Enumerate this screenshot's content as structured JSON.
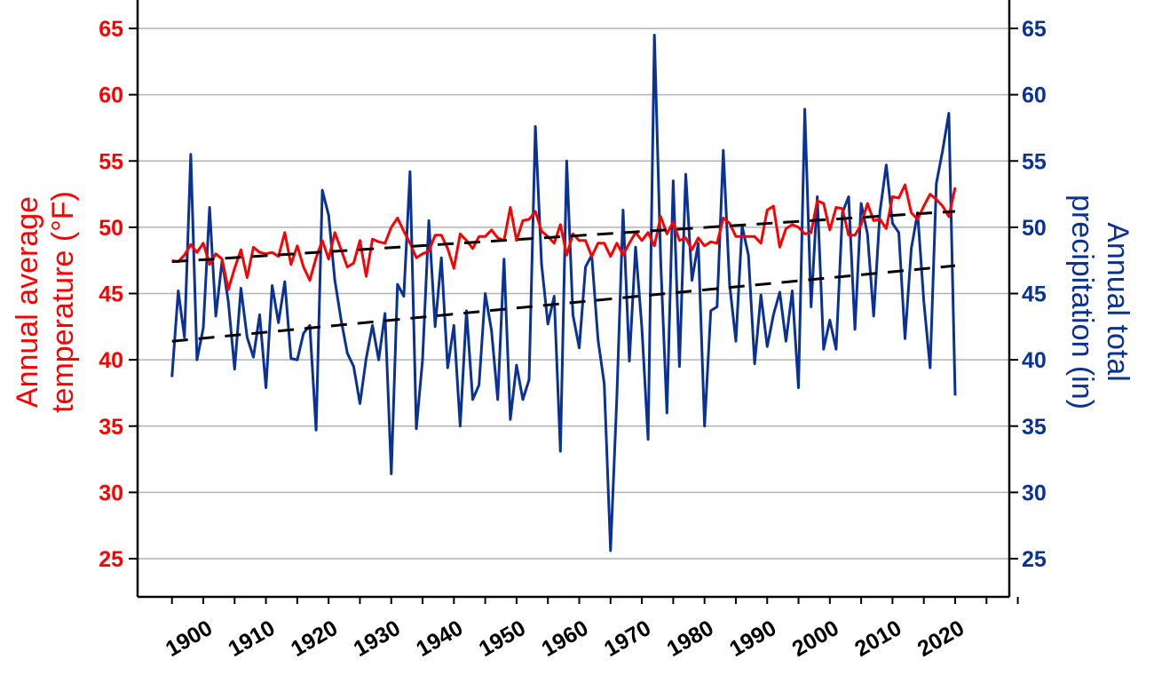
{
  "chart_data": {
    "type": "line",
    "x_start": 1895,
    "x_end": 2020,
    "xlim": [
      1892,
      2031
    ],
    "ylim": [
      22,
      67
    ],
    "y_ticks": [
      25,
      30,
      35,
      40,
      45,
      50,
      55,
      60,
      65
    ],
    "x_ticks": [
      1900,
      1910,
      1920,
      1930,
      1940,
      1950,
      1960,
      1970,
      1980,
      1990,
      2000,
      2010,
      2020
    ],
    "ylabel_left": [
      "Annual average",
      "temperature (°F)"
    ],
    "ylabel_right": [
      "Annual total",
      "precipitation (in)"
    ],
    "grid": true,
    "series": [
      {
        "name": "Annual average temperature (°F)",
        "axis": "left",
        "color": "#ff0000",
        "values": [
          47.5,
          47.4,
          47.9,
          48.7,
          48.1,
          48.8,
          47.2,
          48.0,
          47.6,
          45.3,
          46.9,
          48.3,
          46.2,
          48.5,
          48.1,
          48.0,
          48.1,
          47.8,
          49.6,
          47.2,
          48.6,
          47.0,
          46.0,
          47.7,
          49.0,
          47.6,
          49.6,
          48.3,
          47.0,
          47.3,
          49.0,
          46.3,
          49.1,
          48.9,
          48.8,
          50.0,
          50.7,
          49.7,
          48.8,
          47.7,
          48.0,
          48.2,
          49.4,
          49.4,
          48.4,
          46.9,
          49.5,
          49.0,
          48.4,
          49.3,
          49.3,
          49.8,
          49.2,
          49.0,
          51.5,
          49.0,
          50.5,
          50.6,
          51.2,
          49.7,
          49.3,
          48.8,
          50.2,
          47.9,
          49.5,
          49.0,
          49.0,
          47.8,
          48.8,
          48.8,
          47.8,
          48.8,
          47.9,
          48.8,
          49.6,
          49.0,
          49.6,
          48.6,
          50.8,
          49.5,
          50.4,
          49.0,
          49.2,
          48.3,
          49.2,
          48.6,
          48.9,
          48.8,
          50.7,
          50.3,
          49.3,
          49.3,
          49.3,
          49.3,
          48.8,
          51.3,
          51.6,
          48.5,
          49.9,
          50.2,
          50.0,
          49.5,
          49.6,
          52.0,
          51.8,
          49.8,
          51.5,
          51.4,
          49.4,
          49.4,
          50.2,
          51.8,
          50.5,
          50.6,
          49.9,
          52.3,
          52.2,
          53.2,
          51.1,
          50.6,
          51.6,
          52.5,
          52.1,
          51.6,
          50.8,
          53.0
        ],
        "trend": [
          47.4,
          51.2
        ]
      },
      {
        "name": "Annual total precipitation (in)",
        "axis": "right",
        "color": "#0a3296",
        "values": [
          38.7,
          45.2,
          41.7,
          55.5,
          40.0,
          42.4,
          51.5,
          43.3,
          47.5,
          44.4,
          39.3,
          45.4,
          41.7,
          40.2,
          43.4,
          37.9,
          45.6,
          42.8,
          45.9,
          40.1,
          40.0,
          42.0,
          42.6,
          34.7,
          52.8,
          50.9,
          46.0,
          43.0,
          40.5,
          39.5,
          36.7,
          40.1,
          42.6,
          40.0,
          43.5,
          31.4,
          45.7,
          44.8,
          54.2,
          34.8,
          40.0,
          50.5,
          42.5,
          47.7,
          39.4,
          42.6,
          35.0,
          43.7,
          37.0,
          38.1,
          45.0,
          42.2,
          37.0,
          47.6,
          35.5,
          39.6,
          37.0,
          38.5,
          57.6,
          47.2,
          42.7,
          44.8,
          33.1,
          55.0,
          43.4,
          40.9,
          47.0,
          47.9,
          41.5,
          38.2,
          25.6,
          37.2,
          51.3,
          39.9,
          48.5,
          42.4,
          34.0,
          64.5,
          47.4,
          36.0,
          53.5,
          39.5,
          54.0,
          46.0,
          48.8,
          35.0,
          43.7,
          44.0,
          55.8,
          45.7,
          41.4,
          50.1,
          47.9,
          39.7,
          44.9,
          41.0,
          43.4,
          45.1,
          41.4,
          45.2,
          37.9,
          58.9,
          44.0,
          52.3,
          40.8,
          43.0,
          40.8,
          51.1,
          52.3,
          42.3,
          51.8,
          49.5,
          43.3,
          51.2,
          54.7,
          50.3,
          49.6,
          41.6,
          48.4,
          51.1,
          44.4,
          39.4,
          53.3,
          55.8,
          58.6,
          37.3
        ],
        "trend": [
          41.4,
          47.1
        ]
      }
    ],
    "colors": {
      "left_axis": "#ff0000",
      "right_axis": "#0a3296",
      "trend": "#000000",
      "grid": "#b4b4b4"
    }
  }
}
